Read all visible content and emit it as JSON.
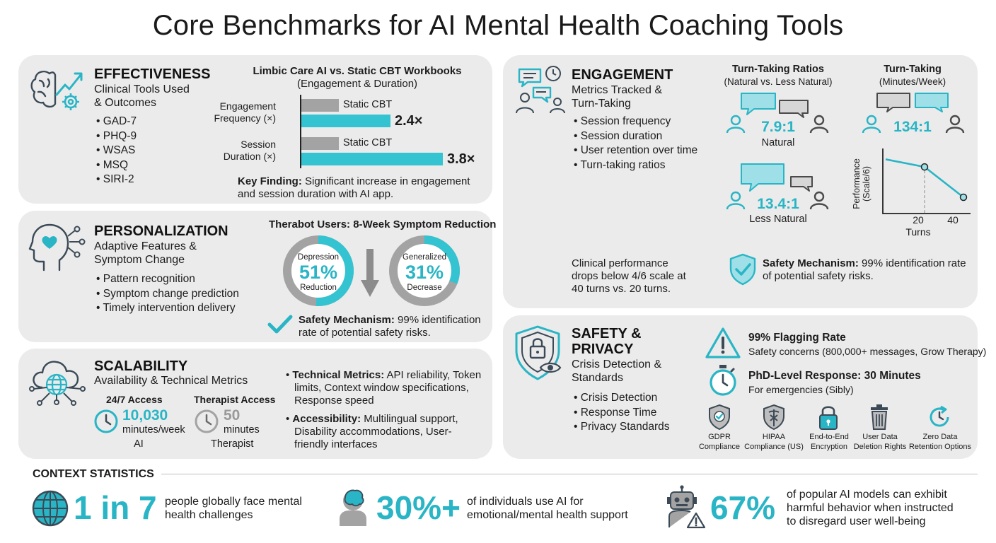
{
  "title": "Core Benchmarks for AI Mental Health Coaching Tools",
  "colors": {
    "accent": "#29b5c5",
    "grey": "#a3a3a3",
    "card": "#ebebeb",
    "icon": "#3b4a56"
  },
  "effectiveness": {
    "heading": "EFFECTIVENESS",
    "subtitle_1": "Clinical Tools Used",
    "subtitle_2": "& Outcomes",
    "tools": [
      "GAD-7",
      "PHQ-9",
      "WSAS",
      "MSQ",
      "SIRI-2"
    ],
    "chart_title": "Limbic Care AI vs. Static CBT Workbooks",
    "chart_subtitle": "(Engagement & Duration)",
    "key_finding_label": "Key Finding:",
    "key_finding_1": " Significant increase in engagement",
    "key_finding_2": "and session duration with AI app."
  },
  "chart_data": {
    "type": "bar",
    "title": "Limbic Care AI vs. Static CBT Workbooks",
    "subtitle": "(Engagement & Duration)",
    "categories": [
      "Engagement Frequency (×)",
      "Session Duration (×)"
    ],
    "category_lines": [
      [
        "Engagement",
        "Frequency (×)"
      ],
      [
        "Session",
        "Duration (×)"
      ]
    ],
    "series": [
      {
        "name": "Static CBT",
        "values": [
          1.0,
          1.0
        ],
        "color": "#a3a3a3"
      },
      {
        "values": [
          2.4,
          3.8
        ],
        "labels": [
          "2.4×",
          "3.8×"
        ],
        "color": "#34c3d0"
      }
    ]
  },
  "personalization": {
    "heading": "PERSONALIZATION",
    "subtitle_1": "Adaptive Features &",
    "subtitle_2": "Symptom Change",
    "items": [
      "Pattern recognition",
      "Symptom change prediction",
      "Timely intervention delivery"
    ],
    "donut_title": "Therabot Users: 8-Week Symptom Reduction",
    "donuts": [
      {
        "top": "Depression",
        "value": "51%",
        "bottom": "Reduction",
        "fraction": 0.51
      },
      {
        "top": "Generalized",
        "value": "31%",
        "bottom": "Decrease",
        "fraction": 0.31
      }
    ],
    "safety_label": "Safety Mechanism:",
    "safety_text_1": " 99% identification",
    "safety_text_2": "rate of potential safety risks."
  },
  "scalability": {
    "heading": "SCALABILITY",
    "subtitle": "Availability & Technical Metrics",
    "ai_access_label": "24/7 Access",
    "ai_value": "10,030",
    "ai_unit": "minutes/week",
    "ai_name": "AI",
    "therapist_access_label": "Therapist Access",
    "therapist_value": "50",
    "therapist_unit": "minutes",
    "therapist_name": "Therapist",
    "tech_label": "Technical Metrics:",
    "tech_text_1": " API reliability, Token",
    "tech_text_2": "limits, Context window specifications,",
    "tech_text_3": "Response speed",
    "access_label": "Accessibility:",
    "access_text_1": " Multilingual support,",
    "access_text_2": "Disability accommodations, User-",
    "access_text_3": "friendly interfaces"
  },
  "engagement": {
    "heading": "ENGAGEMENT",
    "subtitle_1": "Metrics Tracked &",
    "subtitle_2": "Turn-Taking",
    "items": [
      "Session frequency",
      "Session duration",
      "User retention over time",
      "Turn-taking ratios"
    ],
    "ratios_title": "Turn-Taking Ratios",
    "ratios_subtitle": "(Natural vs. Less Natural)",
    "natural_value": "7.9:1",
    "natural_label": "Natural",
    "less_value": "13.4:1",
    "less_label": "Less Natural",
    "minutes_title": "Turn-Taking",
    "minutes_subtitle": "(Minutes/Week)",
    "minutes_value": "134:1",
    "perf_ylabel_1": "Performance",
    "perf_ylabel_2": "(Scale/6)",
    "perf_xlabel": "Turns",
    "perf_ticks": [
      "20",
      "40"
    ],
    "perf_points": [
      {
        "x": 0,
        "y": 5.0
      },
      {
        "x": 20,
        "y": 4.3
      },
      {
        "x": 40,
        "y": 1.5
      }
    ],
    "clinical_1": "Clinical performance",
    "clinical_2": "drops below 4/6 scale at",
    "clinical_3": "40 turns vs. 20 turns.",
    "safety_label": "Safety Mechanism:",
    "safety_text_1": " 99% identification rate",
    "safety_text_2": "of potential safety risks."
  },
  "safety": {
    "heading_1": "SAFETY &",
    "heading_2": "PRIVACY",
    "subtitle_1": "Crisis Detection &",
    "subtitle_2": "Standards",
    "items": [
      "Crisis Detection",
      "Response Time",
      "Privacy Standards"
    ],
    "flag_title": "99% Flagging Rate",
    "flag_text": "Safety concerns (800,000+ messages, Grow Therapy)",
    "phd_title": "PhD-Level Response: 30 Minutes",
    "phd_text": "For emergencies (Sibly)",
    "badges": [
      {
        "line1": "GDPR",
        "line2": "Compliance",
        "icon": "shield-check-icon"
      },
      {
        "line1": "HIPAA",
        "line2": "Compliance (US)",
        "icon": "caduceus-icon"
      },
      {
        "line1": "End-to-End",
        "line2": "Encryption",
        "icon": "lock-icon"
      },
      {
        "line1": "User Data",
        "line2": "Deletion Rights",
        "icon": "trash-icon"
      },
      {
        "line1": "Zero Data",
        "line2": "Retention Options",
        "icon": "refresh-clock-icon"
      }
    ]
  },
  "context": {
    "heading": "CONTEXT STATISTICS",
    "stats": [
      {
        "value": "1 in 7",
        "text_1": "people globally face mental",
        "text_2": "health challenges",
        "text_3": ""
      },
      {
        "value": "30%+",
        "text_1": "of individuals use AI for",
        "text_2": "emotional/mental health support",
        "text_3": ""
      },
      {
        "value": "67%",
        "text_1": "of popular AI models can exhibit",
        "text_2": "harmful behavior when instructed",
        "text_3": "to disregard user well-being"
      }
    ]
  }
}
